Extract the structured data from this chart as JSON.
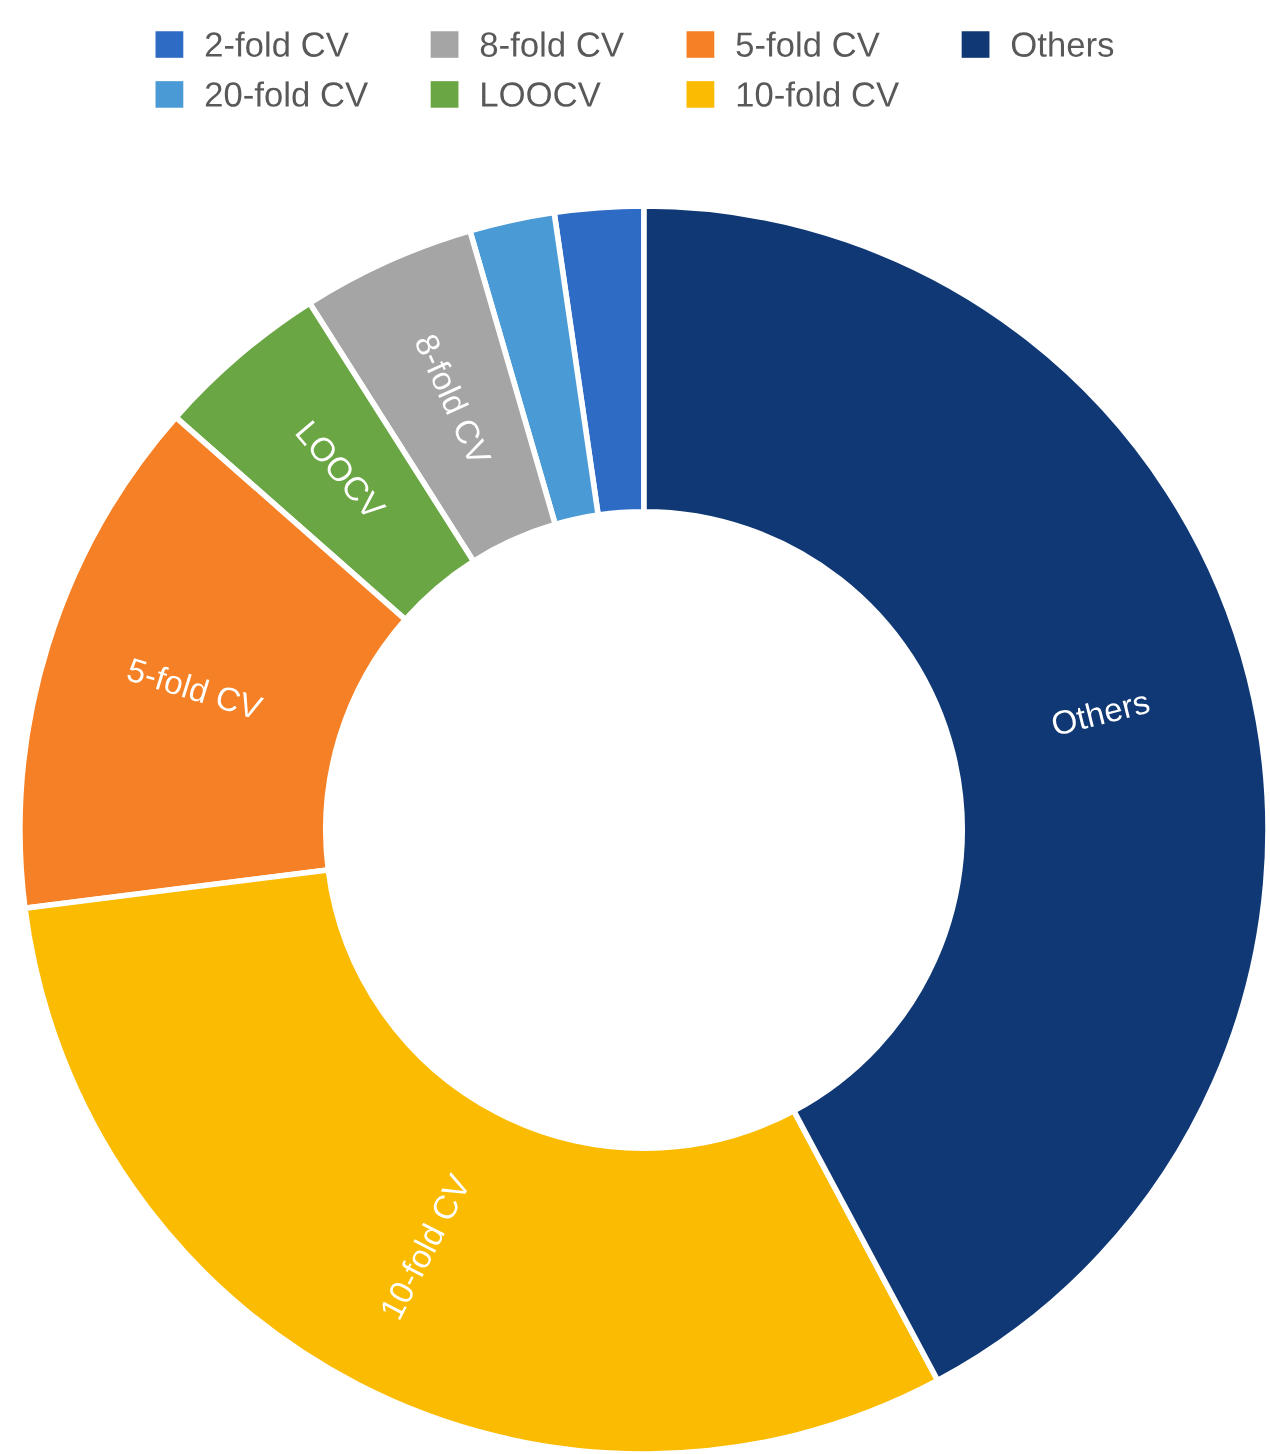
{
  "chart_data": {
    "type": "donut",
    "categories": [
      "2-fold CV",
      "20-fold CV",
      "8-fold CV",
      "LOOCV",
      "5-fold CV",
      "10-fold CV",
      "Others"
    ],
    "values": [
      2.3,
      2.2,
      4.5,
      4.5,
      13.5,
      30.8,
      42.2
    ],
    "colors": [
      "#2e6bc4",
      "#4a9ad6",
      "#a5a5a5",
      "#6aa644",
      "#f58025",
      "#fbbb00",
      "#0f3875"
    ],
    "annotations": [
      {
        "text": "8-fold CV",
        "x": "8-fold CV"
      },
      {
        "text": "LOOCV",
        "x": "LOOCV"
      },
      {
        "text": "5-fold CV",
        "x": "5-fold CV"
      },
      {
        "text": "10-fold CV",
        "x": "10-fold CV"
      },
      {
        "text": "Others",
        "x": "Others"
      }
    ],
    "legend": "top"
  }
}
